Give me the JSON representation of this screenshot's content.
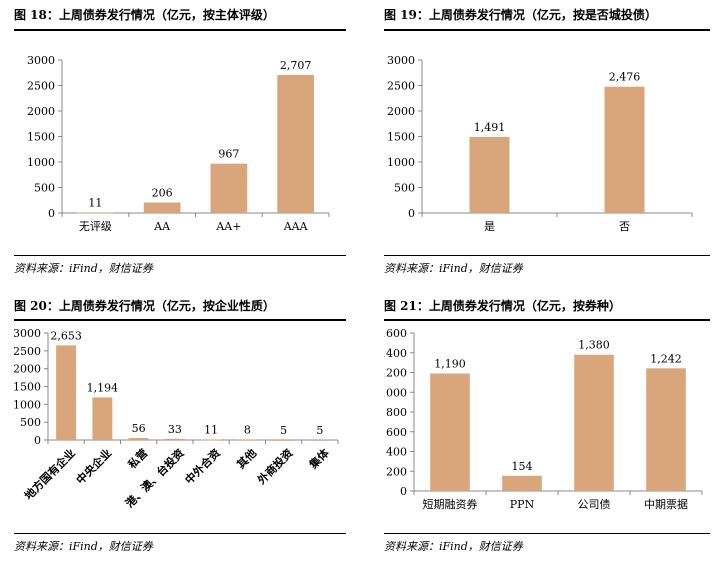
{
  "colors": {
    "bar": "#D9A57A",
    "axis": "#888888",
    "rule": "#000000"
  },
  "source_text": "资料来源：iFind，财信证券",
  "chart_data": [
    {
      "id": "fig18",
      "type": "bar",
      "title": "图 18：上周债券发行情况（亿元，按主体评级）",
      "categories": [
        "无评级",
        "AA",
        "AA+",
        "AAA"
      ],
      "values": [
        11,
        206,
        967,
        2707
      ],
      "labels": [
        "11",
        "206",
        "967",
        "2,707"
      ],
      "ylim": [
        0,
        3000
      ],
      "yticks": [
        "0",
        "500",
        "1000",
        "1500",
        "2000",
        "2500",
        "3000"
      ],
      "xlabel": "",
      "ylabel": "",
      "grid": false
    },
    {
      "id": "fig19",
      "type": "bar",
      "title": "图 19：上周债券发行情况（亿元，按是否城投债）",
      "categories": [
        "是",
        "否"
      ],
      "values": [
        1491,
        2476
      ],
      "labels": [
        "1,491",
        "2,476"
      ],
      "ylim": [
        0,
        3000
      ],
      "yticks": [
        "0",
        "500",
        "1000",
        "1500",
        "2000",
        "2500",
        "3000"
      ],
      "xlabel": "",
      "ylabel": "",
      "grid": false
    },
    {
      "id": "fig20",
      "type": "bar",
      "title": "图 20：上周债券发行情况（亿元，按企业性质）",
      "categories": [
        "地方国有企业",
        "中央企业",
        "私营",
        "港、澳、台投资",
        "中外合资",
        "其他",
        "外商投资",
        "集体"
      ],
      "values": [
        2653,
        1194,
        56,
        33,
        11,
        8,
        5,
        5
      ],
      "labels": [
        "2,653",
        "1,194",
        "56",
        "33",
        "11",
        "8",
        "5",
        "5"
      ],
      "ylim": [
        0,
        3000
      ],
      "yticks": [
        "0",
        "500",
        "1000",
        "1500",
        "2000",
        "2500",
        "3000"
      ],
      "xlabel": "",
      "ylabel": "",
      "grid": false
    },
    {
      "id": "fig21",
      "type": "bar",
      "title": "图 21：上周债券发行情况（亿元，按券种）",
      "categories": [
        "短期融资券",
        "PPN",
        "公司债",
        "中期票据"
      ],
      "values": [
        1190,
        154,
        1380,
        1242
      ],
      "labels": [
        "1,190",
        "154",
        "1,380",
        "1,242"
      ],
      "ylim": [
        0,
        1600
      ],
      "yticks": [
        "0",
        "200",
        "400",
        "600",
        "800",
        "1000",
        "1200",
        "1400",
        "1600"
      ],
      "xlabel": "",
      "ylabel": "",
      "grid": false
    }
  ]
}
